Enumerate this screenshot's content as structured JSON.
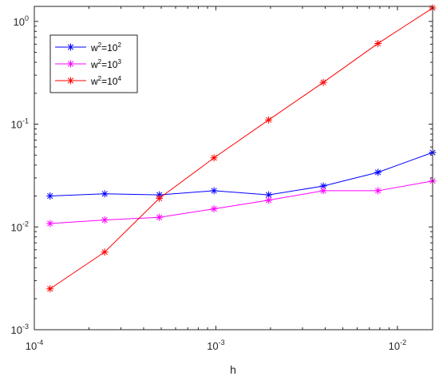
{
  "chart_data": {
    "type": "line",
    "xscale": "log",
    "yscale": "log",
    "xlim": [
      0.0001,
      0.015625
    ],
    "ylim": [
      0.001,
      1.4
    ],
    "xlabel": "h",
    "ylabel": "",
    "title": "",
    "grid": false,
    "legend_position": "top-left",
    "x_ticks": [
      {
        "value": 0.0001,
        "base": "10",
        "exp": "-4"
      },
      {
        "value": 0.001,
        "base": "10",
        "exp": "-3"
      },
      {
        "value": 0.01,
        "base": "10",
        "exp": "-2"
      }
    ],
    "y_ticks": [
      {
        "value": 0.001,
        "base": "10",
        "exp": "-3"
      },
      {
        "value": 0.01,
        "base": "10",
        "exp": "-2"
      },
      {
        "value": 0.1,
        "base": "10",
        "exp": "-1"
      },
      {
        "value": 1,
        "base": "10",
        "exp": "0"
      }
    ],
    "x": [
      0.0001220703125,
      0.000244140625,
      0.00048828125,
      0.0009765625,
      0.001953125,
      0.00390625,
      0.0078125,
      0.015625
    ],
    "series": [
      {
        "name_base": "w",
        "name_exp1": "2",
        "name_mid": "=10",
        "name_exp2": "2",
        "color": "#0000ff",
        "values": [
          0.02,
          0.021,
          0.0205,
          0.0225,
          0.0205,
          0.025,
          0.034,
          0.053
        ]
      },
      {
        "name_base": "w",
        "name_exp1": "2",
        "name_mid": "=10",
        "name_exp2": "3",
        "color": "#ff00ff",
        "values": [
          0.0108,
          0.0117,
          0.0124,
          0.015,
          0.0182,
          0.0225,
          0.0225,
          0.028
        ]
      },
      {
        "name_base": "w",
        "name_exp1": "2",
        "name_mid": "=10",
        "name_exp2": "4",
        "color": "#ff0000",
        "values": [
          0.0025,
          0.0057,
          0.019,
          0.047,
          0.11,
          0.255,
          0.61,
          1.35
        ]
      }
    ]
  }
}
